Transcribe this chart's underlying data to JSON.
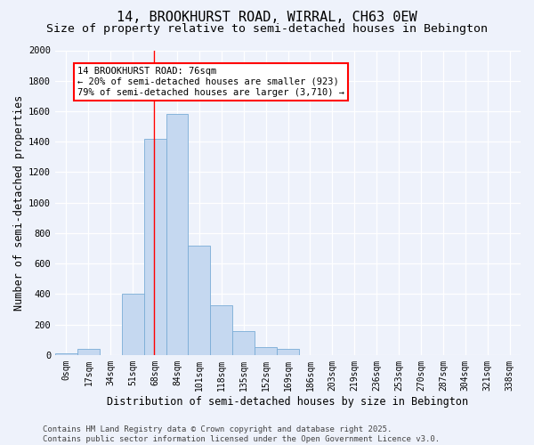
{
  "title": "14, BROOKHURST ROAD, WIRRAL, CH63 0EW",
  "subtitle": "Size of property relative to semi-detached houses in Bebington",
  "xlabel": "Distribution of semi-detached houses by size in Bebington",
  "ylabel": "Number of semi-detached properties",
  "bar_color": "#c5d8f0",
  "bar_edge_color": "#7aacd6",
  "background_color": "#eef2fb",
  "grid_color": "#ffffff",
  "categories": [
    "0sqm",
    "17sqm",
    "34sqm",
    "51sqm",
    "68sqm",
    "84sqm",
    "101sqm",
    "118sqm",
    "135sqm",
    "152sqm",
    "169sqm",
    "186sqm",
    "203sqm",
    "219sqm",
    "236sqm",
    "253sqm",
    "270sqm",
    "287sqm",
    "304sqm",
    "321sqm",
    "338sqm"
  ],
  "values": [
    8,
    38,
    0,
    400,
    1420,
    1580,
    720,
    325,
    155,
    50,
    38,
    0,
    0,
    0,
    0,
    0,
    0,
    0,
    0,
    0,
    0
  ],
  "ylim": [
    0,
    2000
  ],
  "yticks": [
    0,
    200,
    400,
    600,
    800,
    1000,
    1200,
    1400,
    1600,
    1800,
    2000
  ],
  "property_label": "14 BROOKHURST ROAD: 76sqm",
  "pct_smaller": 20,
  "n_smaller": 923,
  "pct_larger": 79,
  "n_larger": 3710,
  "footer_text": "Contains HM Land Registry data © Crown copyright and database right 2025.\nContains public sector information licensed under the Open Government Licence v3.0.",
  "title_fontsize": 11,
  "subtitle_fontsize": 9.5,
  "axis_label_fontsize": 8.5,
  "tick_fontsize": 7,
  "footer_fontsize": 6.5,
  "annot_fontsize": 7.5
}
